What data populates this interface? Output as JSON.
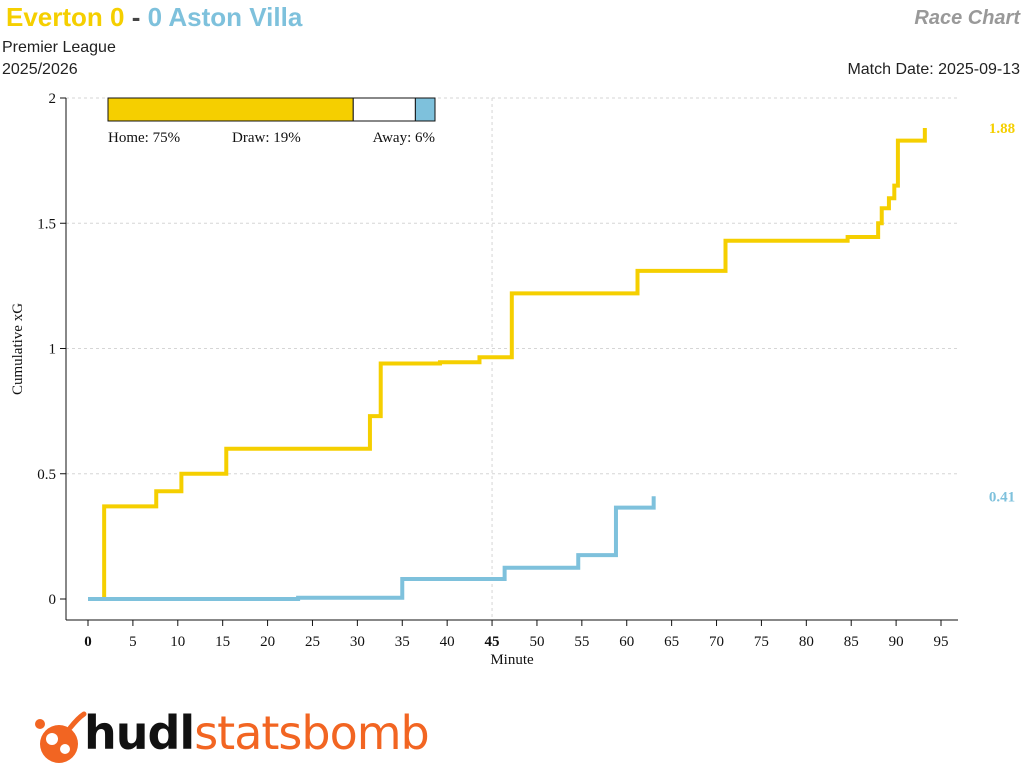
{
  "header": {
    "home_team": "Everton",
    "home_score": "0",
    "separator": "-",
    "away_score": "0",
    "away_team": "Aston Villa",
    "chart_label": "Race Chart",
    "competition": "Premier League",
    "season": "2025/2026",
    "match_date": "Match Date: 2025-09-13"
  },
  "probabilities": {
    "home": 75,
    "draw": 19,
    "away": 6,
    "home_label": "Home: 75%",
    "draw_label": "Draw: 19%",
    "away_label": "Away: 6%"
  },
  "colors": {
    "home": "#f5cf00",
    "away": "#7ec1dc",
    "logo": "#f26522"
  },
  "logo": {
    "part1": "hudl",
    "part2": "statsbomb",
    "icon": "statsbomb-bomb-icon"
  },
  "chart_data": {
    "type": "line",
    "step": true,
    "xlabel": "Minute",
    "ylabel": "Cumulative xG",
    "xlim": [
      0,
      95
    ],
    "ylim": [
      0,
      2
    ],
    "xticks": [
      0,
      5,
      10,
      15,
      20,
      25,
      30,
      35,
      40,
      45,
      50,
      55,
      60,
      65,
      70,
      75,
      80,
      85,
      90,
      95
    ],
    "xtick_labels": [
      "0",
      "5",
      "10",
      "15",
      "20",
      "25",
      "30",
      "35",
      "40",
      "45",
      "50",
      "55",
      "60",
      "65",
      "70",
      "75",
      "80",
      "85",
      "90",
      "95"
    ],
    "bold_xticks": [
      0,
      45
    ],
    "yticks": [
      0,
      0.5,
      1,
      1.5,
      2
    ],
    "ytick_labels": [
      "0",
      "0.5",
      "1",
      "1.5",
      "2"
    ],
    "vlines": [
      45
    ],
    "grid": true,
    "series": [
      {
        "name": "Everton",
        "color": "#f5cf00",
        "final_label": "1.88",
        "points": [
          [
            0,
            0
          ],
          [
            1.8,
            0
          ],
          [
            1.8,
            0.37
          ],
          [
            7.6,
            0.37
          ],
          [
            7.6,
            0.43
          ],
          [
            10.4,
            0.43
          ],
          [
            10.4,
            0.5
          ],
          [
            15.4,
            0.5
          ],
          [
            15.4,
            0.6
          ],
          [
            31.4,
            0.6
          ],
          [
            31.4,
            0.73
          ],
          [
            32.6,
            0.73
          ],
          [
            32.6,
            0.94
          ],
          [
            39.2,
            0.94
          ],
          [
            39.2,
            0.945
          ],
          [
            43.6,
            0.945
          ],
          [
            43.6,
            0.965
          ],
          [
            47.2,
            0.965
          ],
          [
            47.2,
            1.22
          ],
          [
            61.2,
            1.22
          ],
          [
            61.2,
            1.31
          ],
          [
            71.0,
            1.31
          ],
          [
            71.0,
            1.43
          ],
          [
            84.6,
            1.43
          ],
          [
            84.6,
            1.445
          ],
          [
            88.0,
            1.445
          ],
          [
            88.0,
            1.5
          ],
          [
            88.4,
            1.5
          ],
          [
            88.4,
            1.56
          ],
          [
            89.2,
            1.56
          ],
          [
            89.2,
            1.6
          ],
          [
            89.8,
            1.6
          ],
          [
            89.8,
            1.65
          ],
          [
            90.2,
            1.65
          ],
          [
            90.2,
            1.83
          ],
          [
            93.2,
            1.83
          ],
          [
            93.2,
            1.88
          ]
        ]
      },
      {
        "name": "Aston Villa",
        "color": "#7ec1dc",
        "final_label": "0.41",
        "points": [
          [
            0,
            0
          ],
          [
            23.4,
            0
          ],
          [
            23.4,
            0.005
          ],
          [
            35.0,
            0.005
          ],
          [
            35.0,
            0.08
          ],
          [
            46.4,
            0.08
          ],
          [
            46.4,
            0.125
          ],
          [
            54.6,
            0.125
          ],
          [
            54.6,
            0.175
          ],
          [
            58.8,
            0.175
          ],
          [
            58.8,
            0.365
          ],
          [
            63.0,
            0.365
          ],
          [
            63.0,
            0.41
          ]
        ]
      }
    ]
  }
}
